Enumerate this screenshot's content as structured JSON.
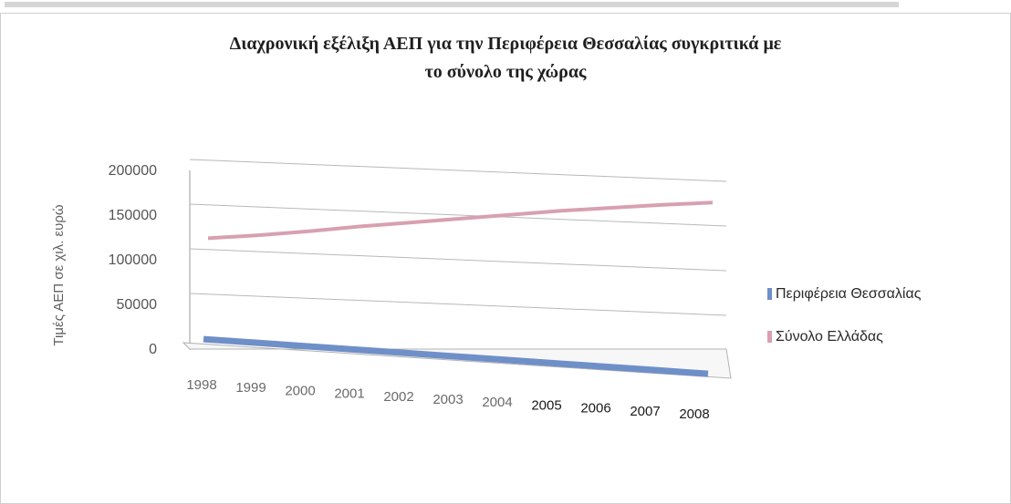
{
  "chart_data": {
    "type": "line",
    "title_lines": [
      "Διαχρονική εξέλιξη ΑΕΠ για την Περιφέρεια Θεσσαλίας συγκριτικά με",
      "το σύνολο της χώρας"
    ],
    "ylabel": "Τιμές ΑΕΠ σε χιλ. ευρώ",
    "xlabel": "",
    "categories": [
      "1998",
      "1999",
      "2000",
      "2001",
      "2002",
      "2003",
      "2004",
      "2005",
      "2006",
      "2007",
      "2008"
    ],
    "y_ticks": [
      "0",
      "50000",
      "100000",
      "150000",
      "200000"
    ],
    "ylim": [
      0,
      200000
    ],
    "grid": true,
    "legend_position": "right",
    "series": [
      {
        "name": "Περιφέρεια Θεσσαλίας",
        "color": "#6f8fc8",
        "values": [
          5000,
          5200,
          5400,
          5600,
          5800,
          6000,
          6200,
          6400,
          6600,
          6800,
          7000
        ]
      },
      {
        "name": "Σύνολο Ελλάδας",
        "color": "#d8a0b0",
        "values": [
          121000,
          125000,
          130000,
          136000,
          141000,
          146000,
          151000,
          156000,
          160000,
          164000,
          167000
        ]
      }
    ]
  }
}
